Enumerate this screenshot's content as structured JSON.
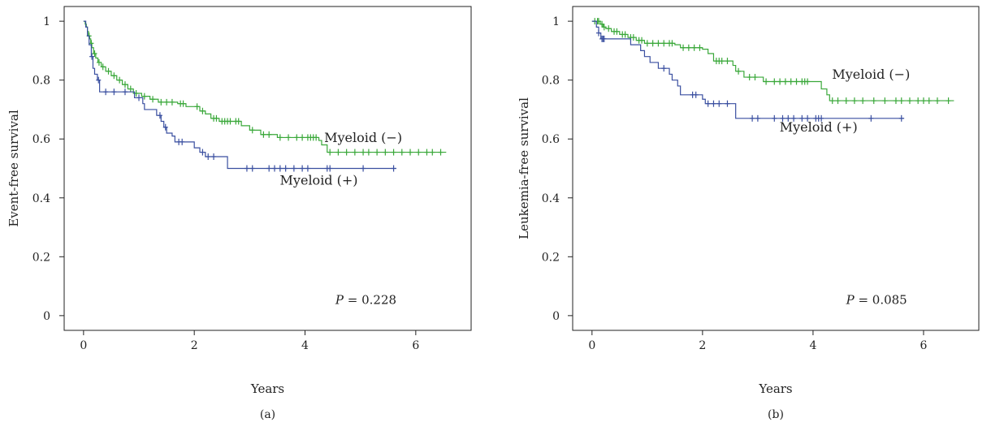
{
  "chart_data": [
    {
      "panel": "(a)",
      "type": "line",
      "xlabel": "Years",
      "ylabel": "Event-free survival",
      "xlim": [
        -0.35,
        7.0
      ],
      "ylim": [
        -0.05,
        1.05
      ],
      "xticks": [
        0,
        2,
        4,
        6
      ],
      "yticks": [
        0,
        0.2,
        0.4,
        0.6,
        0.8,
        1
      ],
      "ytick_labels": [
        "0",
        "0.2",
        "0.4",
        "0.6",
        "0.8",
        "1"
      ],
      "annotation": {
        "prefix": "P",
        "text": " = 0.228",
        "x": 5.1,
        "y": 0.04
      },
      "series": [
        {
          "name": "Myeloid (−)",
          "color": "#3aa83a",
          "label_pos": {
            "x": 5.05,
            "y": 0.59
          },
          "steps": [
            [
              0,
              1.0
            ],
            [
              0.03,
              0.99
            ],
            [
              0.05,
              0.98
            ],
            [
              0.07,
              0.965
            ],
            [
              0.09,
              0.95
            ],
            [
              0.11,
              0.94
            ],
            [
              0.13,
              0.925
            ],
            [
              0.15,
              0.91
            ],
            [
              0.18,
              0.89
            ],
            [
              0.22,
              0.875
            ],
            [
              0.26,
              0.86
            ],
            [
              0.32,
              0.845
            ],
            [
              0.4,
              0.83
            ],
            [
              0.5,
              0.815
            ],
            [
              0.6,
              0.8
            ],
            [
              0.7,
              0.785
            ],
            [
              0.8,
              0.77
            ],
            [
              0.9,
              0.755
            ],
            [
              1.05,
              0.745
            ],
            [
              1.2,
              0.735
            ],
            [
              1.35,
              0.725
            ],
            [
              1.7,
              0.72
            ],
            [
              1.85,
              0.71
            ],
            [
              2.1,
              0.695
            ],
            [
              2.2,
              0.685
            ],
            [
              2.3,
              0.67
            ],
            [
              2.45,
              0.66
            ],
            [
              2.85,
              0.645
            ],
            [
              3.0,
              0.63
            ],
            [
              3.2,
              0.615
            ],
            [
              3.5,
              0.605
            ],
            [
              4.25,
              0.595
            ],
            [
              4.3,
              0.58
            ],
            [
              4.4,
              0.555
            ],
            [
              6.55,
              0.555
            ]
          ],
          "censor_x": [
            0.1,
            0.14,
            0.2,
            0.28,
            0.35,
            0.45,
            0.55,
            0.65,
            0.75,
            0.85,
            0.95,
            1.1,
            1.25,
            1.4,
            1.5,
            1.6,
            1.75,
            1.8,
            2.05,
            2.15,
            2.35,
            2.4,
            2.5,
            2.55,
            2.6,
            2.65,
            2.75,
            2.8,
            3.05,
            3.25,
            3.35,
            3.55,
            3.7,
            3.85,
            3.95,
            4.05,
            4.1,
            4.15,
            4.2,
            4.45,
            4.6,
            4.75,
            4.9,
            5.05,
            5.15,
            5.3,
            5.45,
            5.6,
            5.75,
            5.9,
            6.05,
            6.2,
            6.3,
            6.45
          ]
        },
        {
          "name": "Myeloid (+)",
          "color": "#3a4fa0",
          "label_pos": {
            "x": 4.25,
            "y": 0.445
          },
          "steps": [
            [
              0,
              1.0
            ],
            [
              0.04,
              0.98
            ],
            [
              0.07,
              0.95
            ],
            [
              0.1,
              0.92
            ],
            [
              0.14,
              0.88
            ],
            [
              0.17,
              0.84
            ],
            [
              0.2,
              0.82
            ],
            [
              0.25,
              0.8
            ],
            [
              0.29,
              0.76
            ],
            [
              0.9,
              0.76
            ],
            [
              0.92,
              0.74
            ],
            [
              1.05,
              0.74
            ],
            [
              1.07,
              0.72
            ],
            [
              1.1,
              0.7
            ],
            [
              1.3,
              0.7
            ],
            [
              1.32,
              0.68
            ],
            [
              1.4,
              0.66
            ],
            [
              1.45,
              0.64
            ],
            [
              1.5,
              0.62
            ],
            [
              1.6,
              0.61
            ],
            [
              1.65,
              0.59
            ],
            [
              1.95,
              0.59
            ],
            [
              2.0,
              0.57
            ],
            [
              2.1,
              0.555
            ],
            [
              2.2,
              0.54
            ],
            [
              2.55,
              0.54
            ],
            [
              2.6,
              0.5
            ],
            [
              5.65,
              0.5
            ]
          ],
          "censor_x": [
            0.15,
            0.27,
            0.4,
            0.55,
            0.75,
            1.0,
            1.38,
            1.48,
            1.72,
            1.78,
            2.15,
            2.25,
            2.35,
            2.95,
            3.05,
            3.35,
            3.45,
            3.55,
            3.65,
            3.8,
            3.95,
            4.05,
            4.4,
            4.45,
            5.05,
            5.6
          ]
        }
      ]
    },
    {
      "panel": "(b)",
      "type": "line",
      "xlabel": "Years",
      "ylabel": "Leukemia-free survival",
      "xlim": [
        -0.35,
        7.0
      ],
      "ylim": [
        -0.05,
        1.05
      ],
      "xticks": [
        0,
        2,
        4,
        6
      ],
      "yticks": [
        0,
        0.2,
        0.4,
        0.6,
        0.8,
        1
      ],
      "ytick_labels": [
        "0",
        "0.2",
        "0.4",
        "0.6",
        "0.8",
        "1"
      ],
      "annotation": {
        "prefix": "P",
        "text": " = 0.085",
        "x": 5.15,
        "y": 0.04
      },
      "series": [
        {
          "name": "Myeloid (−)",
          "color": "#3aa83a",
          "label_pos": {
            "x": 5.05,
            "y": 0.805
          },
          "steps": [
            [
              0,
              1.0
            ],
            [
              0.15,
              0.99
            ],
            [
              0.2,
              0.98
            ],
            [
              0.25,
              0.975
            ],
            [
              0.35,
              0.965
            ],
            [
              0.5,
              0.955
            ],
            [
              0.65,
              0.945
            ],
            [
              0.8,
              0.935
            ],
            [
              0.95,
              0.925
            ],
            [
              1.5,
              0.92
            ],
            [
              1.6,
              0.91
            ],
            [
              2.0,
              0.905
            ],
            [
              2.1,
              0.89
            ],
            [
              2.2,
              0.865
            ],
            [
              2.5,
              0.865
            ],
            [
              2.55,
              0.85
            ],
            [
              2.6,
              0.83
            ],
            [
              2.75,
              0.81
            ],
            [
              3.05,
              0.81
            ],
            [
              3.1,
              0.795
            ],
            [
              3.95,
              0.795
            ],
            [
              4.15,
              0.77
            ],
            [
              4.25,
              0.75
            ],
            [
              4.3,
              0.73
            ],
            [
              6.55,
              0.73
            ]
          ],
          "censor_x": [
            0.05,
            0.1,
            0.12,
            0.18,
            0.22,
            0.3,
            0.4,
            0.45,
            0.55,
            0.6,
            0.7,
            0.75,
            0.85,
            0.9,
            1.0,
            1.1,
            1.2,
            1.3,
            1.4,
            1.45,
            1.65,
            1.75,
            1.85,
            1.95,
            2.25,
            2.3,
            2.35,
            2.45,
            2.65,
            2.85,
            2.95,
            3.15,
            3.3,
            3.4,
            3.5,
            3.6,
            3.7,
            3.8,
            3.85,
            3.9,
            4.35,
            4.45,
            4.6,
            4.75,
            4.9,
            5.1,
            5.3,
            5.5,
            5.6,
            5.75,
            5.9,
            6.0,
            6.1,
            6.25,
            6.45
          ]
        },
        {
          "name": "Myeloid (+)",
          "color": "#3a4fa0",
          "label_pos": {
            "x": 4.1,
            "y": 0.625
          },
          "steps": [
            [
              0,
              1.0
            ],
            [
              0.08,
              0.98
            ],
            [
              0.12,
              0.96
            ],
            [
              0.16,
              0.94
            ],
            [
              0.65,
              0.94
            ],
            [
              0.7,
              0.92
            ],
            [
              0.85,
              0.92
            ],
            [
              0.88,
              0.9
            ],
            [
              0.95,
              0.88
            ],
            [
              1.05,
              0.86
            ],
            [
              1.2,
              0.84
            ],
            [
              1.35,
              0.84
            ],
            [
              1.4,
              0.82
            ],
            [
              1.45,
              0.8
            ],
            [
              1.55,
              0.78
            ],
            [
              1.6,
              0.75
            ],
            [
              1.95,
              0.75
            ],
            [
              2.0,
              0.735
            ],
            [
              2.05,
              0.72
            ],
            [
              2.55,
              0.72
            ],
            [
              2.6,
              0.67
            ],
            [
              5.65,
              0.67
            ]
          ],
          "censor_x": [
            0.12,
            0.18,
            0.2,
            0.22,
            1.3,
            1.82,
            1.88,
            2.1,
            2.2,
            2.3,
            2.45,
            2.9,
            3.0,
            3.3,
            3.45,
            3.55,
            3.65,
            3.8,
            3.9,
            4.05,
            4.1,
            4.15,
            5.05,
            5.6
          ]
        }
      ]
    }
  ]
}
